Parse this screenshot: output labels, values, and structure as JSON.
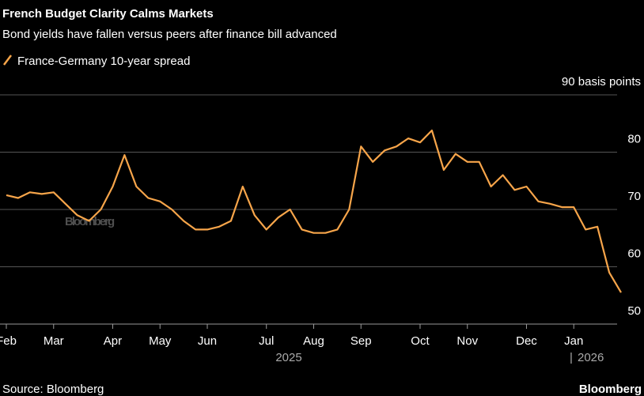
{
  "chart_data": {
    "type": "line",
    "title": "French Budget Clarity Calms Markets",
    "subtitle": "Bond yields have fallen versus peers after finance bill advanced",
    "categories": [
      "Feb",
      null,
      null,
      null,
      "Mar",
      null,
      null,
      null,
      null,
      "Apr",
      null,
      null,
      null,
      "May",
      null,
      null,
      null,
      "Jun",
      null,
      null,
      null,
      null,
      "Jul",
      null,
      null,
      null,
      "Aug",
      null,
      null,
      null,
      "Sep",
      null,
      null,
      null,
      null,
      "Oct",
      null,
      null,
      null,
      "Nov",
      null,
      null,
      null,
      null,
      "Dec",
      null,
      null,
      null,
      "Jan",
      null,
      null,
      null,
      null
    ],
    "year_labels": [
      "2025",
      "2026"
    ],
    "series": [
      {
        "name": "France-Germany 10-year spread",
        "color": "#f7a54a",
        "values": [
          72.5,
          72,
          73,
          72.7,
          73,
          71,
          69,
          68,
          70,
          74,
          79.5,
          74,
          72,
          71.4,
          70,
          68,
          66.5,
          66.5,
          67,
          68,
          74,
          69,
          66.5,
          68.6,
          70,
          66.5,
          65.9,
          65.9,
          66.5,
          70,
          81,
          78.3,
          80.3,
          81,
          82.4,
          81.7,
          83.8,
          76.9,
          79.7,
          78.3,
          78.3,
          74,
          76,
          73.4,
          74,
          71.4,
          71,
          70.4,
          70.4,
          66.5,
          67,
          59,
          55.5
        ]
      }
    ],
    "ylim": [
      50,
      90
    ],
    "yticks": [
      50,
      60,
      70,
      80,
      {
        "value": 90,
        "label": "90 basis points"
      }
    ],
    "grid": true,
    "source": "Source: Bloomberg",
    "watermark": "Bloomberg",
    "logo": "Bloomberg"
  }
}
